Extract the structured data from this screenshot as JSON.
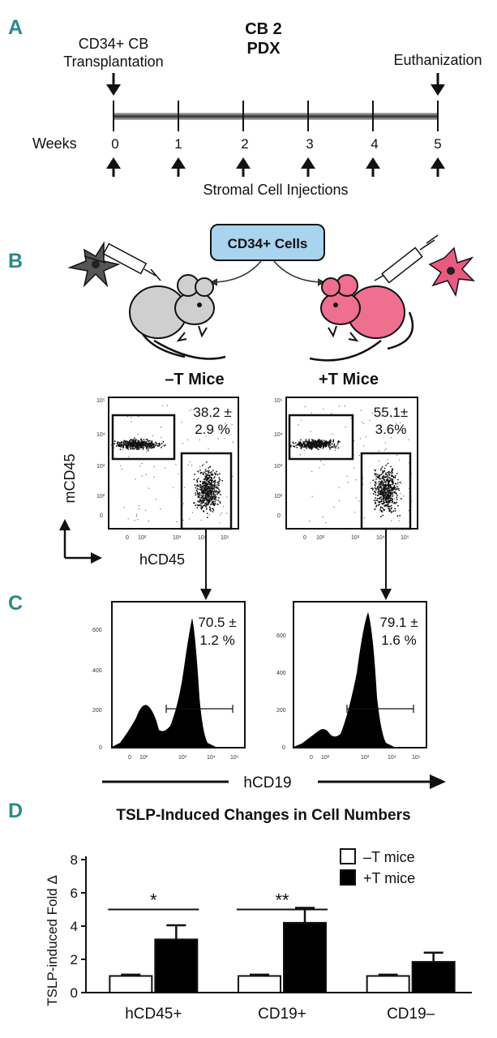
{
  "panels": {
    "A": {
      "letter": "A",
      "title_line1": "CB 2",
      "title_line2": "PDX",
      "start_label_line1": "CD34+ CB",
      "start_label_line2": "Transplantation",
      "end_label": "Euthanization",
      "axis_label": "Weeks",
      "weeks": [
        "0",
        "1",
        "2",
        "3",
        "4",
        "5"
      ],
      "injection_label": "Stromal Cell Injections"
    },
    "B": {
      "letter": "B",
      "box_label": "CD34+ Cells",
      "left_group": "–T Mice",
      "right_group": "+T Mice",
      "y_axis": "mCD45",
      "x_axis": "hCD45",
      "left_pct_line1": "38.2 ±",
      "left_pct_line2": "2.9 %",
      "right_pct_line1": "55.1±",
      "right_pct_line2": "3.6%",
      "left_mouse_color": "#cfcfcf",
      "right_mouse_color": "#ee6f8f",
      "y_ticks": [
        "10⁵",
        "10⁴",
        "10³",
        "10²",
        "0"
      ],
      "x_ticks": [
        "0",
        "10²",
        "10³",
        "10⁴",
        "10⁵"
      ]
    },
    "C": {
      "letter": "C",
      "x_axis": "hCD19",
      "left_pct_line1": "70.5 ±",
      "left_pct_line2": "1.2 %",
      "right_pct_line1": "79.1 ±",
      "right_pct_line2": "1.6 %",
      "y_ticks": [
        "600",
        "400",
        "200",
        "0"
      ],
      "x_ticks": [
        "0",
        "10²",
        "10³",
        "10⁴",
        "10⁵"
      ]
    },
    "D": {
      "letter": "D"
    }
  },
  "chart_data": {
    "type": "bar",
    "title": "TSLP-Induced Changes in Cell Numbers",
    "ylabel": "TSLP-induced Fold Δ",
    "ylim": [
      0,
      8
    ],
    "yticks": [
      0,
      2,
      4,
      6,
      8
    ],
    "categories": [
      "hCD45+",
      "CD19+",
      "CD19–"
    ],
    "series": [
      {
        "name": "–T mice",
        "values": [
          1.0,
          1.0,
          1.0
        ],
        "errors": [
          0.08,
          0.08,
          0.08
        ],
        "color": "#ffffff"
      },
      {
        "name": "+T mice",
        "values": [
          3.2,
          4.2,
          1.85
        ],
        "errors": [
          0.85,
          0.9,
          0.55
        ],
        "color": "#000000"
      }
    ],
    "significance": [
      {
        "category": "hCD45+",
        "label": "*"
      },
      {
        "category": "CD19+",
        "label": "**"
      }
    ],
    "legend_position": "top-right"
  }
}
